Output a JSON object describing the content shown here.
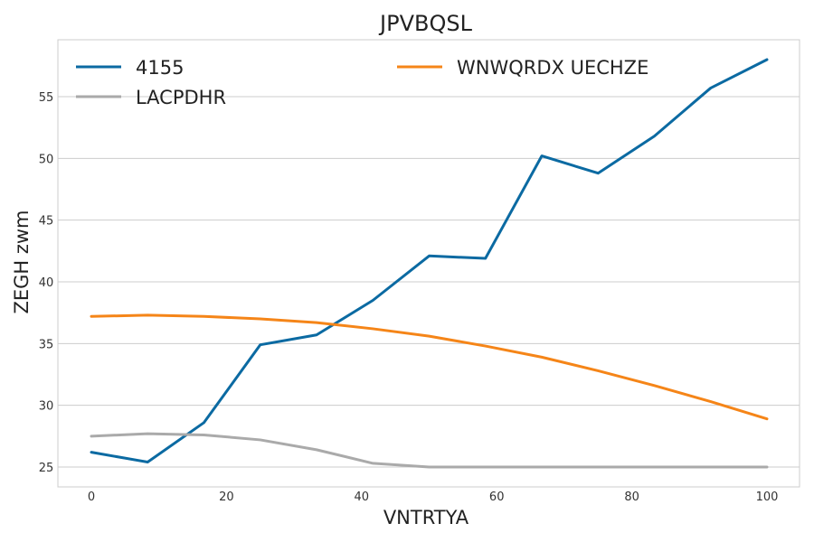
{
  "chart_data": {
    "type": "line",
    "title": "JPVBQSL",
    "xlabel": "VNTRTYA",
    "ylabel": "ZEGH zwm",
    "xlim": [
      0,
      100
    ],
    "ylim": [
      25,
      58
    ],
    "x_ticks": [
      "0",
      "20",
      "40",
      "60",
      "80",
      "100"
    ],
    "y_ticks": [
      "25",
      "30",
      "35",
      "40",
      "45",
      "50",
      "55"
    ],
    "grid": "horizontal",
    "legend_position": "top-left",
    "x": [
      0,
      8.33,
      16.67,
      25,
      33.33,
      41.67,
      50,
      58.33,
      66.67,
      75,
      83.33,
      91.67,
      100
    ],
    "series": [
      {
        "name": "4155",
        "color": "#0b6aa2",
        "values": [
          26.2,
          25.4,
          28.6,
          34.9,
          35.7,
          38.5,
          42.1,
          41.9,
          50.2,
          48.8,
          51.8,
          55.7,
          58.0
        ]
      },
      {
        "name": "WNWQRDX UECHZE",
        "color": "#f58518",
        "values": [
          37.2,
          37.3,
          37.2,
          37.0,
          36.7,
          36.2,
          35.6,
          34.8,
          33.9,
          32.8,
          31.6,
          30.3,
          28.9
        ]
      },
      {
        "name": "LACPDHR",
        "color": "#aaaaaa",
        "values": [
          27.5,
          27.7,
          27.6,
          27.2,
          26.4,
          25.3,
          25.0,
          25.0,
          25.0,
          25.0,
          25.0,
          25.0,
          25.0
        ]
      }
    ]
  }
}
